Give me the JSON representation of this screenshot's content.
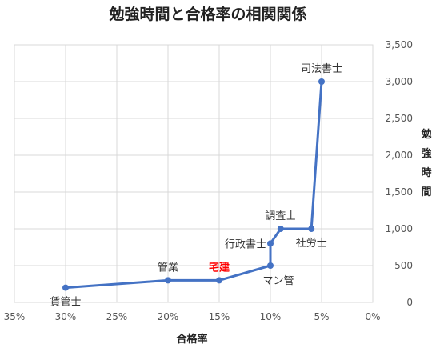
{
  "chart_data": {
    "type": "line",
    "title": "勉強時間と合格率の相関関係",
    "xlabel": "合格率",
    "ylabel": "勉強時間",
    "x_reversed": true,
    "xlim": [
      0,
      35
    ],
    "ylim": [
      0,
      3500
    ],
    "x_ticks": [
      {
        "value": 35,
        "label": "35%"
      },
      {
        "value": 30,
        "label": "30%"
      },
      {
        "value": 25,
        "label": "25%"
      },
      {
        "value": 20,
        "label": "20%"
      },
      {
        "value": 15,
        "label": "15%"
      },
      {
        "value": 10,
        "label": "10%"
      },
      {
        "value": 5,
        "label": "5%"
      },
      {
        "value": 0,
        "label": "0%"
      }
    ],
    "y_ticks": [
      {
        "value": 0,
        "label": "0"
      },
      {
        "value": 500,
        "label": "500"
      },
      {
        "value": 1000,
        "label": "1,000"
      },
      {
        "value": 1500,
        "label": "1,500"
      },
      {
        "value": 2000,
        "label": "2,000"
      },
      {
        "value": 2500,
        "label": "2,500"
      },
      {
        "value": 3000,
        "label": "3,000"
      },
      {
        "value": 3500,
        "label": "3,500"
      }
    ],
    "grid": true,
    "series_color": "#4472c4",
    "highlight_color": "#ff0000",
    "points": [
      {
        "label": "賃管士",
        "x": 30,
        "y": 200,
        "label_pos": "below",
        "highlight": false
      },
      {
        "label": "管業",
        "x": 20,
        "y": 300,
        "label_pos": "above",
        "highlight": false
      },
      {
        "label": "宅建",
        "x": 15,
        "y": 300,
        "label_pos": "above",
        "highlight": true
      },
      {
        "label": "マン管",
        "x": 10,
        "y": 500,
        "label_pos": "below-right",
        "highlight": false
      },
      {
        "label": "行政書士",
        "x": 10,
        "y": 800,
        "label_pos": "left",
        "highlight": false
      },
      {
        "label": "調査士",
        "x": 9,
        "y": 1000,
        "label_pos": "above",
        "highlight": false
      },
      {
        "label": "社労士",
        "x": 6,
        "y": 1000,
        "label_pos": "below",
        "highlight": false
      },
      {
        "label": "司法書士",
        "x": 5,
        "y": 3000,
        "label_pos": "above",
        "highlight": false
      }
    ]
  }
}
